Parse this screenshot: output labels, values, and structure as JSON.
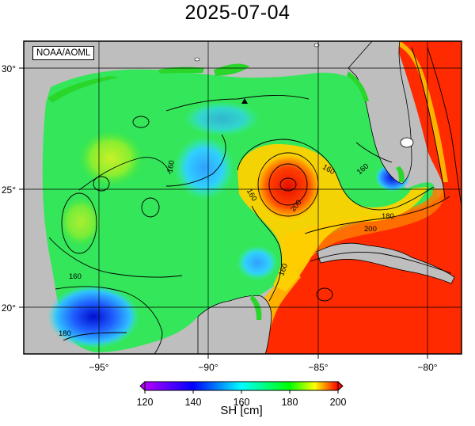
{
  "title": "2025-07-04",
  "credit": "NOAA/AOML",
  "lat_labels": [
    "30°",
    "25°",
    "20°"
  ],
  "lon_labels": [
    "−95°",
    "−90°",
    "−85°",
    "−80°"
  ],
  "contour_labels": [
    "160",
    "160",
    "160",
    "160",
    "160",
    "180",
    "200",
    "160",
    "200",
    "180"
  ],
  "colorbar": {
    "title": "SH [cm]",
    "ticks": [
      "120",
      "140",
      "160",
      "180",
      "200"
    ],
    "range": [
      120,
      200
    ],
    "colors": [
      "#b400ff",
      "#0000ff",
      "#00ffff",
      "#00ff00",
      "#ffff00",
      "#ff0000"
    ]
  },
  "colors": {
    "land": "#bebebe",
    "coast_vegetation": "#2bd62b",
    "contour": "#000000",
    "grid": "#000000"
  }
}
